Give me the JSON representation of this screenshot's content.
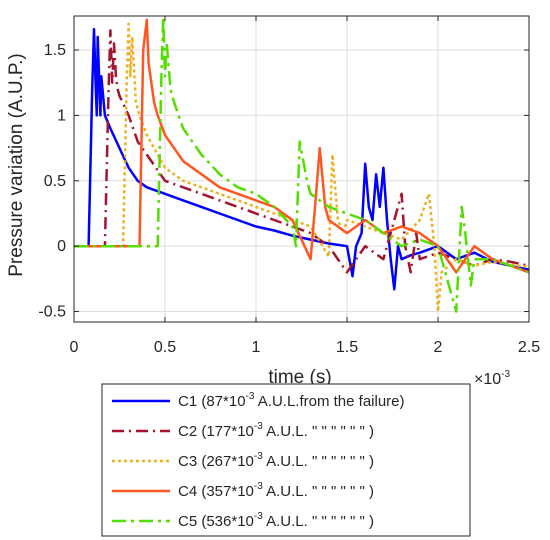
{
  "chart_data": {
    "type": "line",
    "xlabel": "time (s)",
    "ylabel": "Pressure variation (A.U.P.)",
    "x_exponent_label": "×10",
    "x_exponent_power": "-3",
    "xlim": [
      0,
      0.0025
    ],
    "ylim": [
      -0.58,
      1.76
    ],
    "x_ticks": [
      0,
      0.0005,
      0.001,
      0.0015,
      0.002,
      0.0025
    ],
    "x_tick_labels": [
      "0",
      "0.5",
      "1",
      "1.5",
      "2",
      "2.5"
    ],
    "y_ticks": [
      -0.5,
      0,
      0.5,
      1,
      1.5
    ],
    "y_tick_labels": [
      "-0.5",
      "0",
      "0.5",
      "1",
      "1.5"
    ],
    "grid": true,
    "legend_position": "below",
    "series": [
      {
        "name": "C1",
        "legend_parts": [
          "C1 (87*10",
          "-3",
          " A.U.L.from the failure)"
        ],
        "color": "#0000ff",
        "dash": "solid",
        "x": [
          0,
          8e-05,
          0.0001,
          0.00011,
          0.00012,
          0.000125,
          0.00013,
          0.00014,
          0.000145,
          0.00015,
          0.00016,
          0.00017,
          0.0002,
          0.00025,
          0.0003,
          0.00035,
          0.0004,
          0.0005,
          0.0006,
          0.0007,
          0.0008,
          0.0009,
          0.001,
          0.0011,
          0.0012,
          0.0013,
          0.0014,
          0.0015,
          0.00153,
          0.00155,
          0.00158,
          0.0016,
          0.00162,
          0.00164,
          0.00166,
          0.00168,
          0.0017,
          0.00172,
          0.00174,
          0.00176,
          0.00178,
          0.0018,
          0.00185,
          0.0019,
          0.002,
          0.0021,
          0.0022,
          0.0023,
          0.0024,
          0.0025
        ],
        "y": [
          0,
          0,
          1.2,
          1.66,
          1.2,
          1.0,
          1.6,
          1.2,
          1.0,
          1.3,
          1.15,
          1.0,
          0.9,
          0.75,
          0.6,
          0.5,
          0.45,
          0.4,
          0.35,
          0.3,
          0.25,
          0.2,
          0.15,
          0.12,
          0.08,
          0.05,
          0.02,
          0.0,
          -0.23,
          0.0,
          0.1,
          0.63,
          0.3,
          0.2,
          0.55,
          0.3,
          0.6,
          0.2,
          -0.1,
          -0.33,
          0.0,
          -0.1,
          -0.07,
          -0.05,
          0.0,
          -0.1,
          -0.05,
          -0.12,
          -0.15,
          -0.18
        ]
      },
      {
        "name": "C2",
        "legend_parts": [
          "C2 (177*10",
          "-3",
          " A.U.L.  \"  \"  \"  \"  \"  \"  )"
        ],
        "color": "#a2142f",
        "dash": "12,5,2,5",
        "x": [
          0,
          0.00017,
          0.00019,
          0.0002,
          0.00021,
          0.00022,
          0.00023,
          0.00024,
          0.00025,
          0.0003,
          0.00035,
          0.0004,
          0.0005,
          0.0006,
          0.0007,
          0.0008,
          0.0009,
          0.001,
          0.0011,
          0.0012,
          0.0013,
          0.0014,
          0.0015,
          0.0016,
          0.0017,
          0.0018,
          0.00182,
          0.00185,
          0.00188,
          0.0019,
          0.002,
          0.0021,
          0.0022,
          0.0023,
          0.0024,
          0.0025
        ],
        "y": [
          0,
          0,
          1.2,
          1.65,
          1.25,
          1.55,
          1.3,
          1.2,
          1.15,
          1.0,
          0.8,
          0.7,
          0.5,
          0.45,
          0.4,
          0.35,
          0.3,
          0.25,
          0.2,
          0.15,
          0.1,
          0.0,
          -0.2,
          0.0,
          -0.1,
          0.4,
          0.0,
          -0.2,
          0.1,
          -0.1,
          -0.05,
          -0.1,
          -0.15,
          -0.1,
          -0.12,
          -0.15
        ]
      },
      {
        "name": "C3",
        "legend_parts": [
          "C3 (267*10",
          "-3",
          " A.U.L.  \"  \"  \"  \"  \"  \"  )"
        ],
        "color": "#edb120",
        "dash": "3,3",
        "x": [
          0,
          0.00027,
          0.00029,
          0.0003,
          0.00031,
          0.00032,
          0.00034,
          0.00036,
          0.0004,
          0.0005,
          0.0006,
          0.0007,
          0.0008,
          0.0009,
          0.001,
          0.0011,
          0.0012,
          0.0013,
          0.0014,
          0.00142,
          0.00145,
          0.00148,
          0.0015,
          0.0016,
          0.0017,
          0.0018,
          0.0019,
          0.00195,
          0.00198,
          0.002,
          0.00202,
          0.0021,
          0.0022,
          0.0023,
          0.0024,
          0.0025
        ],
        "y": [
          0,
          0,
          1.3,
          1.7,
          1.3,
          1.6,
          1.1,
          1.0,
          0.85,
          0.6,
          0.5,
          0.45,
          0.4,
          0.35,
          0.3,
          0.25,
          0.2,
          0.15,
          -0.08,
          0.7,
          0.2,
          0.1,
          0.2,
          0.15,
          0.1,
          0.05,
          0.2,
          0.4,
          0.0,
          -0.5,
          -0.2,
          -0.1,
          -0.15,
          -0.12,
          -0.14,
          -0.16
        ]
      },
      {
        "name": "C4",
        "legend_parts": [
          "C4 (357*10",
          "-3",
          " A.U.L.  \"  \"  \"  \"  \"  \"  )"
        ],
        "color": "#ff5722",
        "dash": "solid",
        "x": [
          0,
          0.00036,
          0.00038,
          0.0004,
          0.00041,
          0.00042,
          0.00044,
          0.00046,
          0.0005,
          0.0006,
          0.0007,
          0.0008,
          0.0009,
          0.001,
          0.0011,
          0.0012,
          0.0013,
          0.00133,
          0.00135,
          0.00138,
          0.0014,
          0.0015,
          0.0016,
          0.0017,
          0.0018,
          0.0019,
          0.002,
          0.0021,
          0.0022,
          0.0023,
          0.0024,
          0.0025
        ],
        "y": [
          0,
          0,
          1.5,
          1.73,
          1.4,
          1.3,
          1.1,
          1.0,
          0.85,
          0.65,
          0.55,
          0.45,
          0.4,
          0.35,
          0.3,
          0.2,
          -0.1,
          0.4,
          0.75,
          0.3,
          0.2,
          0.1,
          0.2,
          0.1,
          0.15,
          0.1,
          0.0,
          -0.2,
          0.0,
          -0.1,
          -0.15,
          -0.2
        ]
      },
      {
        "name": "C5",
        "legend_parts": [
          "C5 (536*10",
          "-3",
          " A.U.L.  \"  \"  \"  \"  \"  \"  )"
        ],
        "color": "#55dd00",
        "dash": "14,5,3,5",
        "x": [
          0,
          0.00046,
          0.00048,
          0.00049,
          0.0005,
          0.00051,
          0.00053,
          0.00055,
          0.0006,
          0.0007,
          0.0008,
          0.0009,
          0.001,
          0.0011,
          0.0012,
          0.00122,
          0.00124,
          0.00128,
          0.0013,
          0.0014,
          0.0015,
          0.0016,
          0.0017,
          0.0018,
          0.0019,
          0.002,
          0.0021,
          0.00213,
          0.00215,
          0.00218,
          0.0022,
          0.0023,
          0.0024,
          0.0025
        ],
        "y": [
          0,
          0,
          1.3,
          1.75,
          1.3,
          1.55,
          1.2,
          1.1,
          0.9,
          0.7,
          0.55,
          0.45,
          0.4,
          0.3,
          0.15,
          0.0,
          0.8,
          0.5,
          0.4,
          0.3,
          0.25,
          0.2,
          0.1,
          0.0,
          0.05,
          0.0,
          -0.5,
          0.3,
          0.1,
          -0.3,
          -0.1,
          -0.1,
          -0.15,
          -0.2
        ]
      }
    ]
  }
}
